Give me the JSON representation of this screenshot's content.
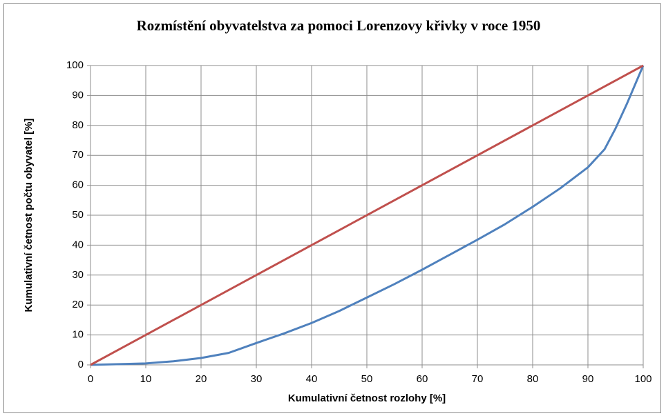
{
  "chart_data": {
    "type": "line",
    "title": "Rozmístění obyvatelstva za pomoci Lorenzovy křivky v roce 1950",
    "x_label": "Kumulativní četnost rozlohy [%]",
    "y_label": "Kumulativní četnost počtu obyvatel [%]",
    "series": [
      {
        "color": "#4f81bd",
        "x": [
          0,
          10,
          15,
          20,
          25,
          30,
          35,
          40,
          45,
          50,
          55,
          60,
          65,
          70,
          75,
          80,
          85,
          90,
          93,
          95,
          97,
          100
        ],
        "values": [
          0,
          0.5,
          1.2,
          2.3,
          4,
          7.3,
          10.5,
          14,
          18,
          22.5,
          27,
          31.8,
          36.8,
          41.8,
          47,
          52.8,
          59,
          66,
          72,
          79,
          87,
          100
        ]
      },
      {
        "color": "#c0504d",
        "x": [
          0,
          100
        ],
        "values": [
          0,
          100
        ]
      }
    ],
    "xlim": [
      0,
      100
    ],
    "xticks": [
      0,
      10,
      20,
      30,
      40,
      50,
      60,
      70,
      80,
      90,
      100
    ],
    "ylim": [
      0,
      100
    ],
    "yticks": [
      0,
      10,
      20,
      30,
      40,
      50,
      60,
      70,
      80,
      90,
      100
    ],
    "grid": true
  }
}
